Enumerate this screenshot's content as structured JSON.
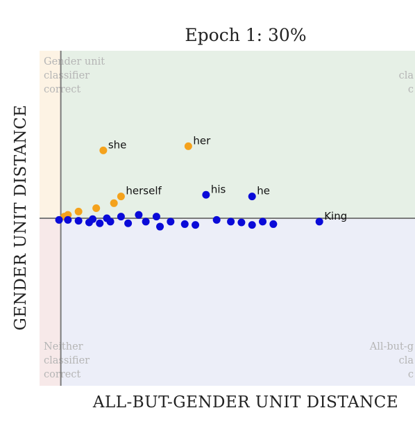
{
  "colors": {
    "female": "#f4a21c",
    "male": "#0a0ad8",
    "quad_top_left": "#fdf3e4",
    "quad_top_right": "#e6f0e6",
    "quad_bottom_left": "#f7e9e9",
    "quad_bottom_right": "#eceef8",
    "axis": "#7a7a7a"
  },
  "chart_data": {
    "type": "scatter",
    "title": "Epoch 1: 30%",
    "xlabel": "ALL-BUT-GENDER UNIT DISTANCE",
    "ylabel": "GENDER UNIT DISTANCE",
    "xlim": [
      -0.06,
      1.0
    ],
    "ylim": [
      -1.0,
      1.0
    ],
    "grid": false,
    "quadrant_labels": {
      "top_left": [
        "Gender unit",
        "classifier",
        "correct"
      ],
      "top_right": [
        "cla",
        "c"
      ],
      "bottom_left": [
        "Neither",
        "classifier",
        "correct"
      ],
      "bottom_right": [
        "All-but-g",
        "cla",
        "c"
      ]
    },
    "series": [
      {
        "points": [
          {
            "x": 0.12,
            "y": 0.405,
            "label": "she"
          },
          {
            "x": 0.36,
            "y": 0.43,
            "label": "her"
          },
          {
            "x": 0.17,
            "y": 0.13,
            "label": "herself"
          },
          {
            "x": 0.15,
            "y": 0.09,
            "label": ""
          },
          {
            "x": 0.1,
            "y": 0.06,
            "label": ""
          },
          {
            "x": 0.05,
            "y": 0.04,
            "label": ""
          },
          {
            "x": 0.02,
            "y": 0.02,
            "label": ""
          },
          {
            "x": 0.01,
            "y": 0.01,
            "label": ""
          }
        ]
      },
      {
        "points": [
          {
            "x": 0.41,
            "y": 0.14,
            "label": "his"
          },
          {
            "x": 0.54,
            "y": 0.13,
            "label": "he"
          },
          {
            "x": 0.73,
            "y": -0.02,
            "label": "King"
          },
          {
            "x": 0.6,
            "y": -0.035,
            "label": ""
          },
          {
            "x": 0.54,
            "y": -0.04,
            "label": ""
          },
          {
            "x": 0.48,
            "y": -0.02,
            "label": ""
          },
          {
            "x": 0.44,
            "y": -0.01,
            "label": ""
          },
          {
            "x": 0.38,
            "y": -0.04,
            "label": ""
          },
          {
            "x": 0.35,
            "y": -0.035,
            "label": ""
          },
          {
            "x": 0.28,
            "y": -0.05,
            "label": ""
          },
          {
            "x": 0.24,
            "y": -0.02,
            "label": ""
          },
          {
            "x": 0.19,
            "y": -0.03,
            "label": ""
          },
          {
            "x": 0.14,
            "y": -0.02,
            "label": ""
          },
          {
            "x": 0.11,
            "y": -0.03,
            "label": ""
          },
          {
            "x": 0.08,
            "y": -0.025,
            "label": ""
          },
          {
            "x": 0.05,
            "y": -0.015,
            "label": ""
          },
          {
            "x": 0.02,
            "y": -0.01,
            "label": ""
          },
          {
            "x": -0.005,
            "y": -0.01,
            "label": ""
          },
          {
            "x": 0.31,
            "y": -0.02,
            "label": ""
          },
          {
            "x": 0.27,
            "y": 0.01,
            "label": ""
          },
          {
            "x": 0.22,
            "y": 0.02,
            "label": ""
          },
          {
            "x": 0.17,
            "y": 0.01,
            "label": ""
          },
          {
            "x": 0.13,
            "y": 0.0,
            "label": ""
          },
          {
            "x": 0.09,
            "y": -0.005,
            "label": ""
          },
          {
            "x": 0.51,
            "y": -0.025,
            "label": ""
          },
          {
            "x": 0.57,
            "y": -0.02,
            "label": ""
          }
        ]
      }
    ]
  }
}
